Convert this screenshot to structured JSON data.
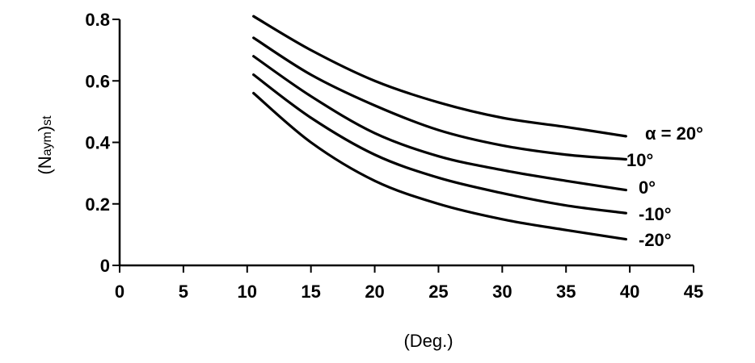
{
  "chart_data": {
    "type": "line",
    "title": "",
    "xlabel": "(Deg.)",
    "ylabel": {
      "main": "(N",
      "sub1": "aym",
      "close": ")",
      "sub2": "st"
    },
    "xlim": [
      0,
      45
    ],
    "ylim": [
      0,
      0.8
    ],
    "x_ticks": [
      "0",
      "5",
      "10",
      "15",
      "20",
      "25",
      "30",
      "35",
      "40",
      "45"
    ],
    "y_ticks": [
      "0",
      "0.2",
      "0.4",
      "0.6",
      "0.8"
    ],
    "grid": false,
    "legend": "none",
    "series_labels": [
      "α = 20°",
      "10°",
      "0°",
      "-10°",
      "-20°"
    ],
    "series": [
      {
        "name": "α = 20°",
        "x": [
          10.5,
          15,
          20,
          25,
          30,
          35,
          39.7
        ],
        "y": [
          0.81,
          0.7,
          0.6,
          0.53,
          0.48,
          0.45,
          0.42
        ]
      },
      {
        "name": "10°",
        "x": [
          10.5,
          15,
          20,
          25,
          30,
          35,
          39.7
        ],
        "y": [
          0.74,
          0.62,
          0.52,
          0.44,
          0.39,
          0.36,
          0.345
        ]
      },
      {
        "name": "0°",
        "x": [
          10.5,
          15,
          20,
          25,
          30,
          35,
          39.7
        ],
        "y": [
          0.68,
          0.55,
          0.43,
          0.355,
          0.31,
          0.275,
          0.245
        ]
      },
      {
        "name": "-10°",
        "x": [
          10.5,
          15,
          20,
          25,
          30,
          35,
          39.7
        ],
        "y": [
          0.62,
          0.48,
          0.36,
          0.285,
          0.235,
          0.195,
          0.17
        ]
      },
      {
        "name": "-20°",
        "x": [
          10.5,
          15,
          20,
          25,
          30,
          35,
          39.7
        ],
        "y": [
          0.56,
          0.4,
          0.275,
          0.2,
          0.15,
          0.115,
          0.085
        ]
      }
    ]
  }
}
